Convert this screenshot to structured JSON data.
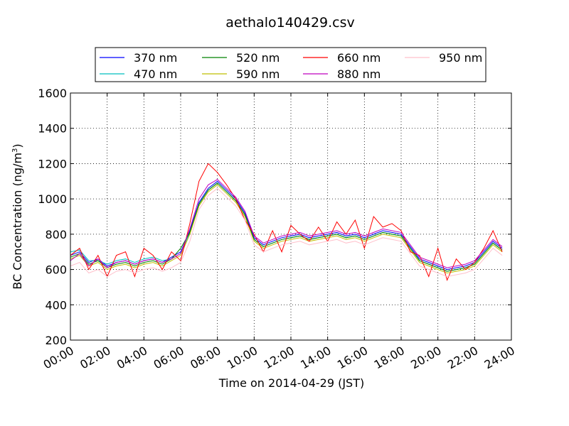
{
  "chart_data": {
    "type": "line",
    "title": "aethalo140429.csv",
    "xlabel": "Time on 2014-04-29 (JST)",
    "ylabel_main": "BC Concentration (ng/m",
    "ylabel_sup": "3",
    "ylabel_close": ")",
    "xlim": [
      "00:00",
      "24:00"
    ],
    "ylim": [
      200,
      1600
    ],
    "grid": true,
    "legend_position": "top",
    "x_tick_labels": [
      "00:00",
      "02:00",
      "04:00",
      "06:00",
      "08:00",
      "10:00",
      "12:00",
      "14:00",
      "16:00",
      "18:00",
      "20:00",
      "22:00",
      "24:00"
    ],
    "y_tick_labels": [
      "200",
      "400",
      "600",
      "800",
      "1000",
      "1200",
      "1400",
      "1600"
    ],
    "y_ticks": [
      200,
      400,
      600,
      800,
      1000,
      1200,
      1400,
      1600
    ],
    "x_hours": [
      0,
      0.5,
      1,
      1.5,
      2,
      2.5,
      3,
      3.5,
      4,
      4.5,
      5,
      5.5,
      6,
      6.5,
      7,
      7.5,
      8,
      8.5,
      9,
      9.5,
      10,
      10.5,
      11,
      11.5,
      12,
      12.5,
      13,
      13.5,
      14,
      14.5,
      15,
      15.5,
      16,
      16.5,
      17,
      17.5,
      18,
      18.5,
      19,
      19.5,
      20,
      20.5,
      21,
      21.5,
      22,
      22.5,
      23,
      23.5
    ],
    "series": [
      {
        "name": "370 nm",
        "color": "#0000ff",
        "values": [
          680,
          700,
          640,
          660,
          620,
          640,
          650,
          630,
          650,
          660,
          640,
          670,
          700,
          820,
          980,
          1060,
          1100,
          1050,
          1000,
          920,
          780,
          740,
          760,
          780,
          790,
          800,
          780,
          790,
          800,
          810,
          790,
          800,
          780,
          800,
          820,
          810,
          800,
          730,
          660,
          640,
          620,
          600,
          610,
          620,
          640,
          700,
          760,
          720
        ]
      },
      {
        "name": "470 nm",
        "color": "#00bfbf",
        "values": [
          700,
          710,
          650,
          650,
          630,
          650,
          660,
          640,
          660,
          670,
          650,
          660,
          690,
          810,
          970,
          1050,
          1090,
          1040,
          990,
          910,
          770,
          730,
          750,
          770,
          780,
          790,
          770,
          780,
          790,
          800,
          780,
          790,
          770,
          790,
          810,
          800,
          790,
          720,
          650,
          630,
          610,
          590,
          600,
          610,
          630,
          690,
          750,
          710
        ]
      },
      {
        "name": "520 nm",
        "color": "#008000",
        "values": [
          670,
          690,
          630,
          650,
          610,
          630,
          640,
          620,
          640,
          650,
          630,
          660,
          720,
          810,
          970,
          1050,
          1090,
          1040,
          990,
          910,
          770,
          730,
          750,
          770,
          780,
          790,
          770,
          780,
          790,
          800,
          780,
          790,
          770,
          790,
          810,
          800,
          790,
          720,
          650,
          630,
          610,
          590,
          600,
          610,
          630,
          690,
          750,
          710
        ]
      },
      {
        "name": "590 nm",
        "color": "#bfbf00",
        "values": [
          660,
          680,
          620,
          640,
          600,
          620,
          630,
          610,
          630,
          640,
          620,
          650,
          680,
          800,
          960,
          1040,
          1080,
          1030,
          980,
          900,
          760,
          720,
          740,
          760,
          770,
          780,
          760,
          770,
          780,
          790,
          770,
          780,
          760,
          780,
          800,
          790,
          780,
          710,
          640,
          620,
          600,
          580,
          590,
          600,
          620,
          680,
          740,
          700
        ]
      },
      {
        "name": "660 nm",
        "color": "#ff0000",
        "values": [
          680,
          720,
          600,
          680,
          560,
          680,
          700,
          560,
          720,
          680,
          600,
          700,
          650,
          860,
          1100,
          1200,
          1150,
          1080,
          1000,
          880,
          800,
          700,
          820,
          700,
          850,
          800,
          760,
          840,
          760,
          870,
          800,
          880,
          720,
          900,
          840,
          860,
          820,
          700,
          680,
          560,
          720,
          540,
          660,
          600,
          640,
          720,
          820,
          700
        ]
      },
      {
        "name": "880 nm",
        "color": "#bf00bf",
        "values": [
          650,
          690,
          620,
          660,
          610,
          640,
          650,
          630,
          650,
          660,
          640,
          660,
          690,
          830,
          1000,
          1080,
          1110,
          1060,
          1010,
          930,
          790,
          750,
          770,
          790,
          800,
          810,
          790,
          800,
          810,
          820,
          800,
          810,
          790,
          810,
          830,
          820,
          810,
          740,
          670,
          650,
          630,
          610,
          620,
          630,
          650,
          710,
          770,
          730
        ]
      },
      {
        "name": "950 nm",
        "color": "#ffc0cb",
        "values": [
          620,
          640,
          580,
          600,
          560,
          590,
          600,
          580,
          600,
          610,
          590,
          610,
          640,
          760,
          940,
          1020,
          1060,
          1010,
          960,
          880,
          740,
          700,
          720,
          740,
          750,
          760,
          740,
          750,
          760,
          770,
          750,
          760,
          740,
          760,
          780,
          770,
          760,
          690,
          620,
          600,
          580,
          560,
          570,
          580,
          600,
          660,
          720,
          680
        ]
      }
    ]
  }
}
